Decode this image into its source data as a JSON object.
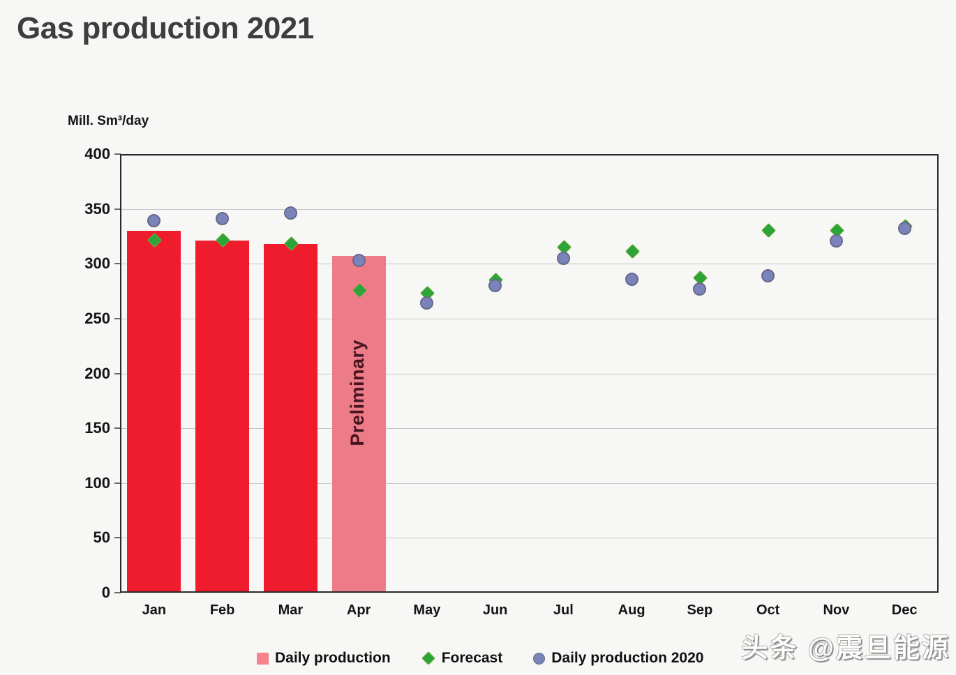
{
  "watermark": "头条 @震旦能源",
  "colors": {
    "background": "#f7f7f5",
    "title_text": "#3d3d3d",
    "axis_border": "#2a2a2a",
    "gridline": "#c6c6c6",
    "daily_production_bar": "#ee1c2d",
    "preliminary_bar": "#ee7c88",
    "preliminary_text": "#471520",
    "forecast_marker": "#2ca439",
    "forecast_marker_border": "#6fae3f",
    "production_2020_marker": "#7b84ba",
    "production_2020_marker_border": "#67698b",
    "legend_daily_swatch": "#f4838d"
  },
  "legend": [
    {
      "label": "Daily production",
      "marker": "square"
    },
    {
      "label": "Forecast",
      "marker": "diamond"
    },
    {
      "label": "Daily production 2020",
      "marker": "circle"
    }
  ],
  "chart_data": {
    "type": "bar",
    "title": "Gas production 2021",
    "ylabel": "Mill. Sm³/day",
    "xlabel": "",
    "ylim": [
      0,
      400
    ],
    "ytick_step": 50,
    "grid": true,
    "legend_position": "bottom",
    "categories": [
      "Jan",
      "Feb",
      "Mar",
      "Apr",
      "May",
      "Jun",
      "Jul",
      "Aug",
      "Sep",
      "Oct",
      "Nov",
      "Dec"
    ],
    "series": [
      {
        "name": "Daily production",
        "type": "bar",
        "values": [
          330,
          321,
          318,
          307,
          null,
          null,
          null,
          null,
          null,
          null,
          null,
          null
        ]
      },
      {
        "name": "Forecast",
        "type": "scatter",
        "marker": "diamond",
        "values": [
          322,
          322,
          319,
          276,
          274,
          286,
          316,
          312,
          288,
          331,
          331,
          335
        ]
      },
      {
        "name": "Daily production 2020",
        "type": "scatter",
        "marker": "circle",
        "values": [
          339,
          341,
          346,
          303,
          264,
          280,
          305,
          286,
          277,
          289,
          321,
          332
        ]
      }
    ],
    "preliminary_category": "Apr",
    "annotations": [
      {
        "text": "Preliminary",
        "category": "Apr"
      }
    ]
  }
}
